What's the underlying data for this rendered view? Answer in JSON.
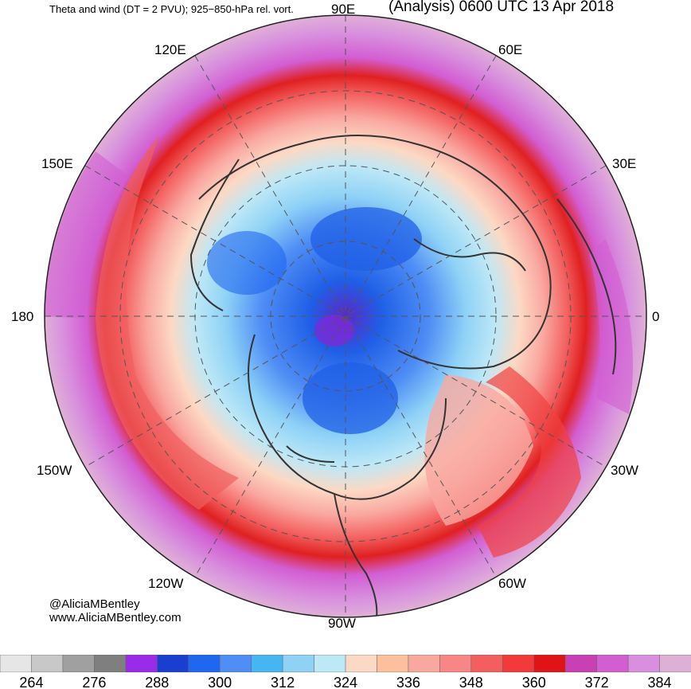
{
  "header": {
    "title_left": "Theta and wind (DT = 2 PVU); 925−850-hPa rel. vort.",
    "title_right": "(Analysis) 0600 UTC 13 Apr 2018"
  },
  "longitude_labels": {
    "lon_90e": "90E",
    "lon_120e": "120E",
    "lon_60e": "60E",
    "lon_150e": "150E",
    "lon_30e": "30E",
    "lon_180": "180",
    "lon_0": "0",
    "lon_150w": "150W",
    "lon_30w": "30W",
    "lon_120w": "120W",
    "lon_60w": "60W",
    "lon_90w": "90W"
  },
  "credits": {
    "twitter": "@AliciaMBentley",
    "website": "www.AliciaMBentley.com"
  },
  "colorbar": {
    "colors": [
      "#e6e6e6",
      "#c8c8c8",
      "#a0a0a0",
      "#7f7f7f",
      "#9a2be8",
      "#1a3fd0",
      "#1f66f0",
      "#4f8ef5",
      "#45b6f2",
      "#8fd2f6",
      "#bde8f6",
      "#fcd9c4",
      "#fcc09c",
      "#f9a8a0",
      "#f68784",
      "#f35f5f",
      "#f23a3a",
      "#e01414",
      "#c940b4",
      "#d25ed2",
      "#d890de",
      "#dfb0d6"
    ],
    "tick_labels": [
      "264",
      "276",
      "288",
      "300",
      "312",
      "324",
      "336",
      "348",
      "360",
      "372",
      "384"
    ]
  }
}
